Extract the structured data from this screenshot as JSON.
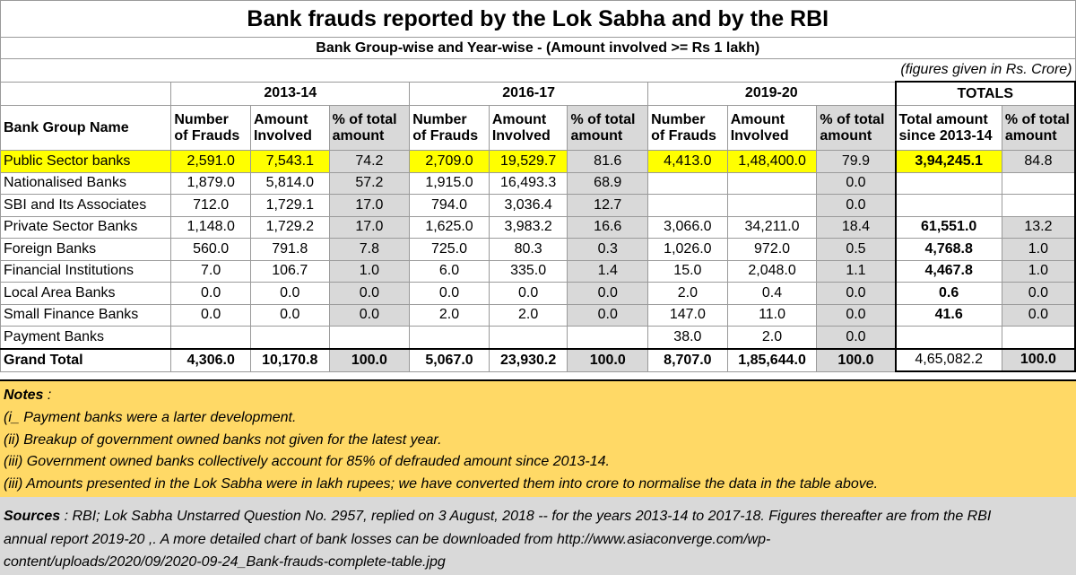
{
  "title": "Bank frauds reported by the Lok Sabha and by the RBI",
  "subtitle": "Bank Group-wise and Year-wise - (Amount involved >= Rs 1 lakh)",
  "units_note": "(figures given in Rs. Crore)",
  "years": [
    "2013-14",
    "2016-17",
    "2019-20"
  ],
  "totals_label": "TOTALS",
  "bank_group_header": "Bank Group Name",
  "col_labels": {
    "frauds_1": "Number",
    "frauds_2": "of Frauds",
    "amount_1": "Amount",
    "amount_2": "Involved",
    "pct_1": "% of total",
    "pct_2": "amount",
    "total_amount_1": "Total amount",
    "total_amount_2": "since 2013-14"
  },
  "rows": [
    {
      "name": "Public Sector banks",
      "y1": [
        "2,591.0",
        "7,543.1",
        "74.2"
      ],
      "y2": [
        "2,709.0",
        "19,529.7",
        "81.6"
      ],
      "y3": [
        "4,413.0",
        "1,48,400.0",
        "79.9"
      ],
      "total": "3,94,245.1",
      "total_pct": "84.8"
    },
    {
      "name": "Nationalised Banks",
      "y1": [
        "1,879.0",
        "5,814.0",
        "57.2"
      ],
      "y2": [
        "1,915.0",
        "16,493.3",
        "68.9"
      ],
      "y3": [
        "",
        "",
        "0.0"
      ],
      "total": "",
      "total_pct": ""
    },
    {
      "name": "SBI and Its Associates",
      "y1": [
        "712.0",
        "1,729.1",
        "17.0"
      ],
      "y2": [
        "794.0",
        "3,036.4",
        "12.7"
      ],
      "y3": [
        "",
        "",
        "0.0"
      ],
      "total": "",
      "total_pct": ""
    },
    {
      "name": "Private Sector Banks",
      "y1": [
        "1,148.0",
        "1,729.2",
        "17.0"
      ],
      "y2": [
        "1,625.0",
        "3,983.2",
        "16.6"
      ],
      "y3": [
        "3,066.0",
        "34,211.0",
        "18.4"
      ],
      "total": "61,551.0",
      "total_pct": "13.2"
    },
    {
      "name": "Foreign Banks",
      "y1": [
        "560.0",
        "791.8",
        "7.8"
      ],
      "y2": [
        "725.0",
        "80.3",
        "0.3"
      ],
      "y3": [
        "1,026.0",
        "972.0",
        "0.5"
      ],
      "total": "4,768.8",
      "total_pct": "1.0"
    },
    {
      "name": "Financial Institutions",
      "y1": [
        "7.0",
        "106.7",
        "1.0"
      ],
      "y2": [
        "6.0",
        "335.0",
        "1.4"
      ],
      "y3": [
        "15.0",
        "2,048.0",
        "1.1"
      ],
      "total": "4,467.8",
      "total_pct": "1.0"
    },
    {
      "name": "Local Area Banks",
      "y1": [
        "0.0",
        "0.0",
        "0.0"
      ],
      "y2": [
        "0.0",
        "0.0",
        "0.0"
      ],
      "y3": [
        "2.0",
        "0.4",
        "0.0"
      ],
      "total": "0.6",
      "total_pct": "0.0"
    },
    {
      "name": "Small Finance Banks",
      "y1": [
        "0.0",
        "0.0",
        "0.0"
      ],
      "y2": [
        "2.0",
        "2.0",
        "0.0"
      ],
      "y3": [
        "147.0",
        "11.0",
        "0.0"
      ],
      "total": "41.6",
      "total_pct": "0.0"
    },
    {
      "name": "Payment Banks",
      "y1": [
        "",
        "",
        ""
      ],
      "y2": [
        "",
        "",
        ""
      ],
      "y3": [
        "38.0",
        "2.0",
        "0.0"
      ],
      "total": "",
      "total_pct": ""
    }
  ],
  "grand_total": {
    "name": "Grand Total",
    "y1": [
      "4,306.0",
      "10,170.8",
      "100.0"
    ],
    "y2": [
      "5,067.0",
      "23,930.2",
      "100.0"
    ],
    "y3": [
      "8,707.0",
      "1,85,644.0",
      "100.0"
    ],
    "total": "4,65,082.2",
    "total_pct": "100.0"
  },
  "notes": {
    "heading": "Notes",
    "heading_suffix": " :",
    "lines": [
      "(i_ Payment banks were a larter development.",
      "(ii) Breakup of government owned banks not given for the latest year.",
      "(iii) Government owned banks collectively account for 85% of defrauded amount since 2013-14.",
      "(iii) Amounts presented in the Lok Sabha were in lakh rupees; we have converted them into crore to normalise the data in the table above."
    ]
  },
  "sources": {
    "heading": "Sources",
    "lines": [
      " : RBI; Lok Sabha Unstarred Question No. 2957, replied on 3 August, 2018  -- for the years  2013-14 to 2017-18.  Figures thereafter are from the RBI",
      "annual report 2019-20        ,. A more detailed chart of bank losses can be downloaded from  http://www.asiaconverge.com/wp-",
      "content/uploads/2020/09/2020-09-24_Bank-frauds-complete-table.jpg"
    ]
  }
}
